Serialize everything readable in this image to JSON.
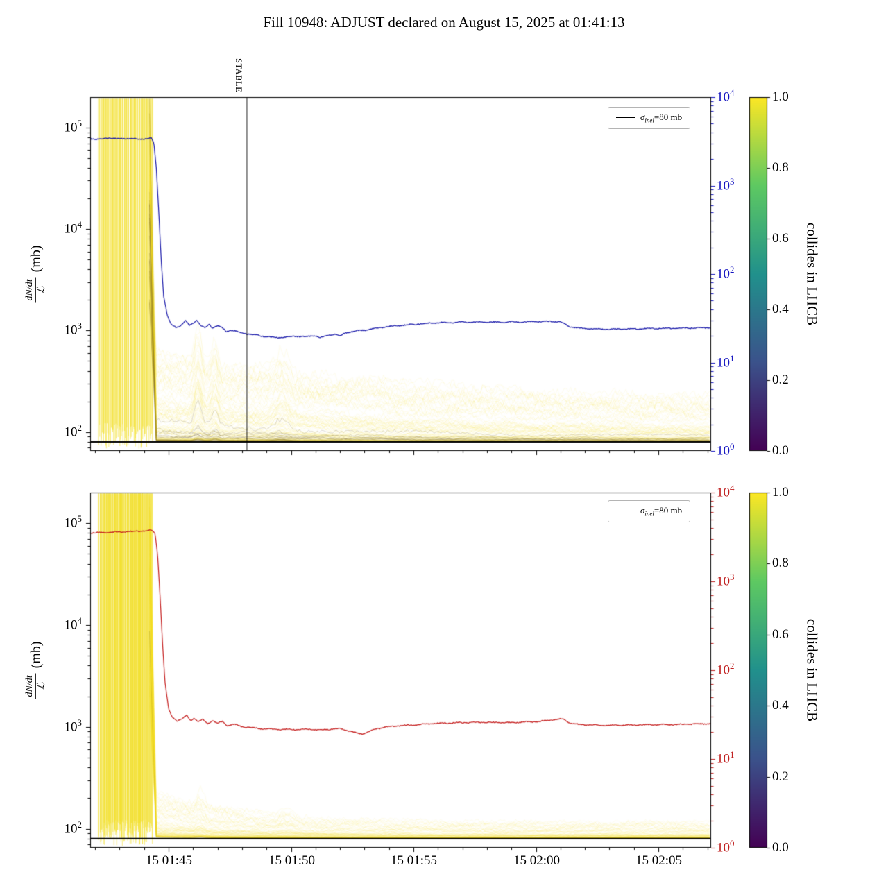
{
  "title": "Fill 10948: ADJUST declared on August 15, 2025 at 01:41:13",
  "chart_data": [
    {
      "type": "line",
      "panel": "top",
      "yscale": "log",
      "ylabel": {
        "numerator": "dN/dt",
        "denominator": "ℒ",
        "unit": "(mb)"
      },
      "ylim_mb": [
        65,
        200000
      ],
      "y_tick_exponents": [
        5,
        4,
        3,
        2
      ],
      "x_axis": {
        "lim_minutes_after_0140": [
          1.8,
          27.15
        ],
        "tick_minutes": [
          5,
          10,
          15,
          20,
          25
        ],
        "labels_visible": false,
        "minor_tick_every_minutes": 1
      },
      "right_axis": {
        "color": "#1515c0",
        "lim": [
          1,
          10000
        ],
        "tick_exponents": [
          4,
          3,
          2,
          1,
          0
        ]
      },
      "legend": {
        "sigma": "σ",
        "subscript": "inel",
        "rest": "=80 mb",
        "line_color": "#000000"
      },
      "sigma_inel_line_mb": 80,
      "stable_marker": {
        "label": "STABLE",
        "minute": 8.2
      },
      "main_series": {
        "name": "total-dNdt-over-L",
        "color": "#1414a8",
        "points_min_mb": [
          [
            1.8,
            78000
          ],
          [
            2.2,
            77000
          ],
          [
            2.6,
            79000
          ],
          [
            3.0,
            77500
          ],
          [
            3.4,
            78500
          ],
          [
            3.8,
            77000
          ],
          [
            4.1,
            78000
          ],
          [
            4.3,
            79000
          ],
          [
            4.4,
            70000
          ],
          [
            4.5,
            40000
          ],
          [
            4.6,
            15000
          ],
          [
            4.7,
            5000
          ],
          [
            4.8,
            2200
          ],
          [
            4.95,
            1400
          ],
          [
            5.1,
            1150
          ],
          [
            5.3,
            1080
          ],
          [
            5.5,
            1120
          ],
          [
            5.7,
            1250
          ],
          [
            5.85,
            1120
          ],
          [
            6.0,
            1180
          ],
          [
            6.15,
            1280
          ],
          [
            6.3,
            1120
          ],
          [
            6.5,
            1060
          ],
          [
            6.65,
            1160
          ],
          [
            6.8,
            1060
          ],
          [
            7.0,
            1120
          ],
          [
            7.2,
            1060
          ],
          [
            7.35,
            980
          ],
          [
            7.6,
            1010
          ],
          [
            7.9,
            960
          ],
          [
            8.2,
            930
          ],
          [
            8.6,
            900
          ],
          [
            9.0,
            870
          ],
          [
            9.4,
            850
          ],
          [
            9.8,
            860
          ],
          [
            10.2,
            880
          ],
          [
            10.6,
            870
          ],
          [
            11.0,
            890
          ],
          [
            11.2,
            850
          ],
          [
            11.5,
            900
          ],
          [
            11.8,
            920
          ],
          [
            12.0,
            880
          ],
          [
            12.2,
            940
          ],
          [
            12.6,
            990
          ],
          [
            13.0,
            1010
          ],
          [
            13.4,
            1040
          ],
          [
            13.8,
            1080
          ],
          [
            14.2,
            1110
          ],
          [
            14.6,
            1130
          ],
          [
            15.0,
            1150
          ],
          [
            15.4,
            1170
          ],
          [
            15.8,
            1190
          ],
          [
            16.2,
            1200
          ],
          [
            16.6,
            1195
          ],
          [
            17.0,
            1210
          ],
          [
            17.4,
            1205
          ],
          [
            17.8,
            1215
          ],
          [
            18.2,
            1210
          ],
          [
            18.6,
            1205
          ],
          [
            19.0,
            1215
          ],
          [
            19.4,
            1210
          ],
          [
            19.8,
            1220
          ],
          [
            20.2,
            1225
          ],
          [
            20.6,
            1230
          ],
          [
            21.0,
            1225
          ],
          [
            21.2,
            1150
          ],
          [
            21.4,
            1090
          ],
          [
            21.7,
            1060
          ],
          [
            22.1,
            1045
          ],
          [
            22.6,
            1035
          ],
          [
            23.2,
            1030
          ],
          [
            23.8,
            1035
          ],
          [
            24.4,
            1045
          ],
          [
            25.0,
            1050
          ],
          [
            25.6,
            1055
          ],
          [
            26.2,
            1060
          ],
          [
            26.8,
            1065
          ],
          [
            27.15,
            1070
          ]
        ]
      },
      "bunch_band": {
        "n_lines": 130,
        "n_stripes": 30,
        "color": "#f2de1e",
        "dark_color": "#5a4618",
        "dark_fraction": 0.16,
        "stripe_region_minutes": [
          2.17,
          4.32
        ],
        "collapse_minute": 4.5,
        "band_base_mb": 80,
        "band_top_mb": 500,
        "decay_tau_min": 7,
        "spikes": [
          [
            6.2,
            1.3,
            0.12
          ],
          [
            6.9,
            1.0,
            0.12
          ],
          [
            9.6,
            0.9,
            0.25
          ]
        ]
      },
      "colorbar": {
        "label": "collides in LHCB",
        "tick_labels": [
          "1.0",
          "0.8",
          "0.6",
          "0.4",
          "0.2",
          "0.0"
        ],
        "cmap": "viridis",
        "cmap_stops_top_to_bottom": [
          "#fde725",
          "#5ec962",
          "#21918c",
          "#3b528b",
          "#440154"
        ]
      }
    },
    {
      "type": "line",
      "panel": "bottom",
      "yscale": "log",
      "ylabel": {
        "numerator": "dN/dt",
        "denominator": "ℒ",
        "unit": "(mb)"
      },
      "ylim_mb": [
        65,
        200000
      ],
      "y_tick_exponents": [
        5,
        4,
        3,
        2
      ],
      "x_axis": {
        "lim_minutes_after_0140": [
          1.8,
          27.15
        ],
        "tick_minutes": [
          5,
          10,
          15,
          20,
          25
        ],
        "tick_labels": [
          "15 01:45",
          "15 01:50",
          "15 01:55",
          "15 02:00",
          "15 02:05"
        ],
        "labels_visible": true,
        "minor_tick_every_minutes": 1
      },
      "right_axis": {
        "color": "#c02020",
        "lim": [
          1,
          10000
        ],
        "tick_exponents": [
          4,
          3,
          2,
          1,
          0
        ]
      },
      "legend": {
        "sigma": "σ",
        "subscript": "inel",
        "rest": "=80 mb",
        "line_color": "#000000"
      },
      "sigma_inel_line_mb": 80,
      "main_series": {
        "name": "total-dNdt-over-L",
        "color": "#c41a1a",
        "points_min_mb": [
          [
            1.8,
            80000
          ],
          [
            2.4,
            81000
          ],
          [
            3.0,
            82000
          ],
          [
            3.6,
            83000
          ],
          [
            4.0,
            84000
          ],
          [
            4.3,
            85000
          ],
          [
            4.45,
            80000
          ],
          [
            4.55,
            50000
          ],
          [
            4.65,
            20000
          ],
          [
            4.75,
            7000
          ],
          [
            4.85,
            2800
          ],
          [
            5.0,
            1500
          ],
          [
            5.15,
            1250
          ],
          [
            5.35,
            1150
          ],
          [
            5.55,
            1200
          ],
          [
            5.75,
            1300
          ],
          [
            5.9,
            1150
          ],
          [
            6.05,
            1220
          ],
          [
            6.2,
            1120
          ],
          [
            6.4,
            1180
          ],
          [
            6.6,
            1080
          ],
          [
            6.8,
            1150
          ],
          [
            7.0,
            1080
          ],
          [
            7.2,
            1130
          ],
          [
            7.4,
            1030
          ],
          [
            7.7,
            1060
          ],
          [
            8.0,
            1010
          ],
          [
            8.4,
            980
          ],
          [
            8.8,
            960
          ],
          [
            9.2,
            950
          ],
          [
            9.6,
            940
          ],
          [
            10.0,
            950
          ],
          [
            10.4,
            940
          ],
          [
            10.8,
            950
          ],
          [
            11.2,
            930
          ],
          [
            11.6,
            950
          ],
          [
            12.0,
            960
          ],
          [
            12.3,
            920
          ],
          [
            12.6,
            880
          ],
          [
            12.9,
            850
          ],
          [
            13.2,
            900
          ],
          [
            13.5,
            960
          ],
          [
            13.9,
            1000
          ],
          [
            14.3,
            1020
          ],
          [
            14.8,
            1040
          ],
          [
            15.3,
            1060
          ],
          [
            15.8,
            1080
          ],
          [
            16.3,
            1090
          ],
          [
            16.8,
            1100
          ],
          [
            17.3,
            1100
          ],
          [
            17.8,
            1110
          ],
          [
            18.3,
            1105
          ],
          [
            18.8,
            1100
          ],
          [
            19.3,
            1110
          ],
          [
            19.8,
            1120
          ],
          [
            20.3,
            1140
          ],
          [
            20.8,
            1180
          ],
          [
            21.1,
            1200
          ],
          [
            21.3,
            1120
          ],
          [
            21.5,
            1070
          ],
          [
            21.9,
            1050
          ],
          [
            22.4,
            1040
          ],
          [
            23.0,
            1035
          ],
          [
            23.6,
            1040
          ],
          [
            24.2,
            1045
          ],
          [
            24.8,
            1050
          ],
          [
            25.4,
            1055
          ],
          [
            26.0,
            1060
          ],
          [
            26.6,
            1070
          ],
          [
            27.15,
            1075
          ]
        ]
      },
      "bunch_band": {
        "n_lines": 130,
        "n_stripes": 48,
        "color": "#f2de1e",
        "dark_color": "#5a4618",
        "dark_fraction": 0.05,
        "stripe_region_minutes": [
          2.17,
          4.32
        ],
        "collapse_minute": 4.5,
        "band_base_mb": 80,
        "band_top_mb": 130,
        "decay_tau_min": 3,
        "spikes": [
          [
            6.3,
            0.5,
            0.15
          ],
          [
            9.8,
            0.4,
            0.25
          ]
        ]
      },
      "colorbar": {
        "label": "collides in LHCB",
        "tick_labels": [
          "1.0",
          "0.8",
          "0.6",
          "0.4",
          "0.2",
          "0.0"
        ],
        "cmap": "viridis",
        "cmap_stops_top_to_bottom": [
          "#fde725",
          "#5ec962",
          "#21918c",
          "#3b528b",
          "#440154"
        ]
      }
    }
  ]
}
